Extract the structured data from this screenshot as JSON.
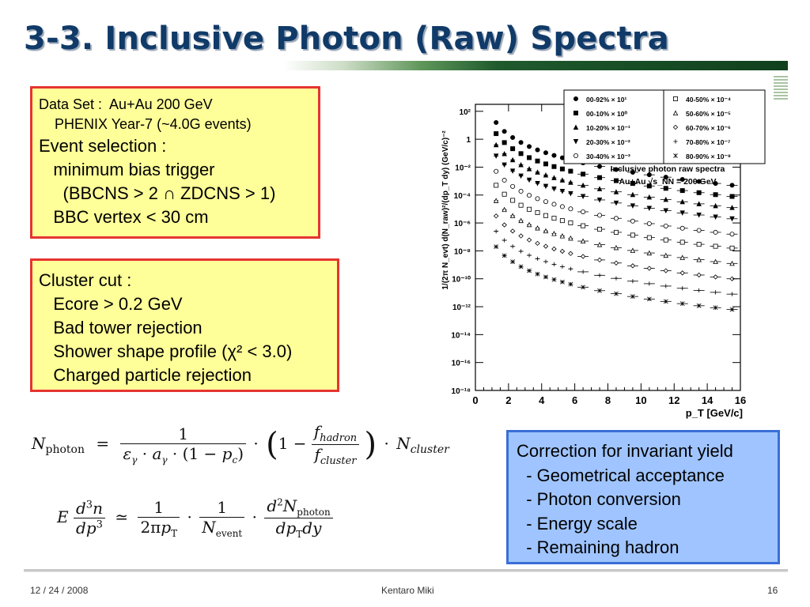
{
  "title": "3-3. Inclusive Photon (Raw) Spectra",
  "box1": {
    "lines": [
      "Data Set :  Au+Au 200 GeV",
      "    PHENIX Year-7 (~4.0G events)",
      "Event selection :",
      "   minimum bias trigger",
      "     (BBCNS > 2 ∩ ZDCNS > 1)",
      "   BBC vertex < 30 cm"
    ]
  },
  "box2": {
    "lines": [
      "Cluster cut :",
      "   Ecore > 0.2 GeV",
      "   Bad tower rejection",
      "   Shower shape profile (χ² < 3.0)",
      "   Charged particle rejection"
    ]
  },
  "box3": {
    "lines": [
      "Correction for invariant yield",
      "  - Geometrical acceptance",
      "  - Photon conversion",
      "  - Energy scale",
      "  - Remaining hadron"
    ]
  },
  "formula1": {
    "lhs": "N",
    "lhs_sub": "photon",
    "eq": "=",
    "num": "1",
    "den": "ε_γ · a_γ · (1 − p_c)",
    "f_num": "f_hadron",
    "f_den": "f_cluster",
    "rhs": "N_cluster"
  },
  "formula2": {
    "lhs": "E d³n / dp³",
    "approx": "≃",
    "f1": "1 / 2πp_T",
    "f2": "1 / N_event",
    "f3": "d²N_photon / dp_T dy"
  },
  "footer": {
    "date": "12 / 24 / 2008",
    "author": "Kentaro Miki",
    "page": "16"
  },
  "chart_data": {
    "type": "scatter",
    "xlabel": "p_T [GeV/c]",
    "ylabel": "1/(2π N_evt) d(N_raw)²/(dp_T dy) (GeV/c)⁻²",
    "annotation": [
      "Inclusive photon raw spectra",
      "Au+Au √s_NN = 200 GeV"
    ],
    "xlim": [
      0,
      16
    ],
    "ylim_log10": [
      -18,
      2.5
    ],
    "x_ticks": [
      0,
      2,
      4,
      6,
      8,
      10,
      12,
      14,
      16
    ],
    "y_ticks": [
      "10²",
      "1",
      "10⁻²",
      "10⁻⁴",
      "10⁻⁶",
      "10⁻⁸",
      "10⁻¹⁰",
      "10⁻¹²",
      "10⁻¹⁴",
      "10⁻¹⁶",
      "10⁻¹⁸"
    ],
    "y_tick_exps": [
      2,
      0,
      -2,
      -4,
      -6,
      -8,
      -10,
      -12,
      -14,
      -16,
      -18
    ],
    "x": [
      1.25,
      1.75,
      2.25,
      2.75,
      3.25,
      3.75,
      4.25,
      4.75,
      5.25,
      5.75,
      6.5,
      7.5,
      8.5,
      9.5,
      10.5,
      11.5,
      12.5,
      13.5,
      14.5,
      15.5
    ],
    "series": [
      {
        "name": "00-92% × 10¹",
        "marker": "circle-filled",
        "log10_y": [
          1.2,
          0.56,
          0.12,
          -0.23,
          -0.52,
          -0.76,
          -0.97,
          -1.16,
          -1.33,
          -1.49,
          -1.7,
          -1.95,
          -2.17,
          -2.37,
          -2.55,
          -2.72,
          -2.88,
          -3.03,
          -3.17,
          -3.3
        ]
      },
      {
        "name": "00-10% × 10⁰",
        "marker": "square-filled",
        "log10_y": [
          0.4,
          -0.24,
          -0.68,
          -1.03,
          -1.32,
          -1.56,
          -1.77,
          -1.96,
          -2.13,
          -2.29,
          -2.5,
          -2.75,
          -2.97,
          -3.17,
          -3.35,
          -3.52,
          -3.68,
          -3.83,
          -3.97,
          -4.1
        ]
      },
      {
        "name": "10-20% × 10⁻¹",
        "marker": "triangle-filled",
        "log10_y": [
          -0.4,
          -1.04,
          -1.48,
          -1.83,
          -2.12,
          -2.36,
          -2.57,
          -2.76,
          -2.93,
          -3.09,
          -3.3,
          -3.55,
          -3.77,
          -3.97,
          -4.15,
          -4.32,
          -4.48,
          -4.63,
          -4.77,
          -4.9
        ]
      },
      {
        "name": "20-30% × 10⁻²",
        "marker": "triangle-down-filled",
        "log10_y": [
          -1.2,
          -1.84,
          -2.28,
          -2.63,
          -2.92,
          -3.16,
          -3.37,
          -3.56,
          -3.73,
          -3.89,
          -4.1,
          -4.35,
          -4.57,
          -4.77,
          -4.95,
          -5.12,
          -5.28,
          -5.43,
          -5.57,
          -5.7
        ]
      },
      {
        "name": "30-40% × 10⁻³",
        "marker": "circle-open",
        "log10_y": [
          -2.3,
          -2.94,
          -3.38,
          -3.73,
          -4.02,
          -4.26,
          -4.47,
          -4.66,
          -4.83,
          -4.99,
          -5.2,
          -5.45,
          -5.67,
          -5.87,
          -6.05,
          -6.22,
          -6.38,
          -6.53,
          -6.67,
          -6.8
        ]
      },
      {
        "name": "40-50% × 10⁻⁴",
        "marker": "square-open",
        "log10_y": [
          -3.3,
          -3.94,
          -4.38,
          -4.73,
          -5.02,
          -5.26,
          -5.47,
          -5.66,
          -5.83,
          -5.99,
          -6.2,
          -6.45,
          -6.67,
          -6.87,
          -7.05,
          -7.22,
          -7.38,
          -7.53,
          -7.67,
          -7.8
        ]
      },
      {
        "name": "50-60% × 10⁻⁵",
        "marker": "triangle-open",
        "log10_y": [
          -4.4,
          -5.04,
          -5.48,
          -5.83,
          -6.12,
          -6.36,
          -6.57,
          -6.76,
          -6.93,
          -7.09,
          -7.3,
          -7.55,
          -7.77,
          -7.97,
          -8.15,
          -8.32,
          -8.48,
          -8.63,
          -8.77,
          -8.9
        ]
      },
      {
        "name": "60-70% × 10⁻⁶",
        "marker": "diamond-open",
        "log10_y": [
          -5.5,
          -6.14,
          -6.58,
          -6.93,
          -7.22,
          -7.46,
          -7.67,
          -7.86,
          -8.03,
          -8.19,
          -8.4,
          -8.65,
          -8.87,
          -9.07,
          -9.25,
          -9.42,
          -9.58,
          -9.73,
          -9.87,
          -10.0
        ]
      },
      {
        "name": "70-80% × 10⁻⁷",
        "marker": "cross-open",
        "log10_y": [
          -6.6,
          -7.24,
          -7.68,
          -8.03,
          -8.32,
          -8.56,
          -8.77,
          -8.96,
          -9.13,
          -9.29,
          -9.5,
          -9.75,
          -9.97,
          -10.17,
          -10.35,
          -10.52,
          -10.68,
          -10.83,
          -10.97,
          -11.1
        ]
      },
      {
        "name": "80-90% × 10⁻⁸",
        "marker": "star-filled",
        "log10_y": [
          -7.7,
          -8.34,
          -8.78,
          -9.13,
          -9.42,
          -9.66,
          -9.87,
          -10.06,
          -10.23,
          -10.39,
          -10.6,
          -10.85,
          -11.07,
          -11.27,
          -11.45,
          -11.62,
          -11.78,
          -11.93,
          -12.07,
          -12.2
        ]
      }
    ]
  }
}
